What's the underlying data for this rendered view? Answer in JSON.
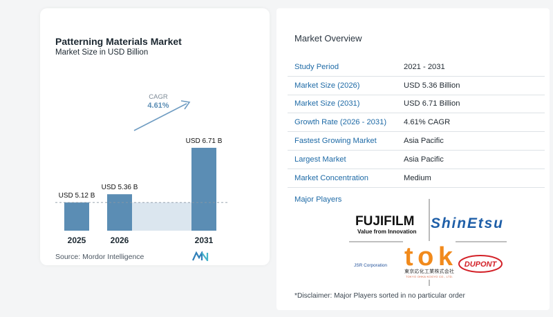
{
  "chart_data": {
    "type": "bar",
    "title": "Patterning Materials Market",
    "subtitle": "Market Size in USD Billion",
    "categories": [
      "2025",
      "2026",
      "2031"
    ],
    "values": [
      5.12,
      5.36,
      6.71
    ],
    "data_labels": [
      "USD 5.12 B",
      "USD 5.36 B",
      "USD 6.71 B"
    ],
    "cagr_label": "CAGR",
    "cagr_value": "4.61%",
    "color": "#5b8db4",
    "shade_color": "#dbe6ef"
  },
  "source": "Source:  Mordor Intelligence",
  "overview": {
    "title": "Market Overview",
    "rows": [
      {
        "label": "Study Period",
        "value": "2021 - 2031"
      },
      {
        "label": "Market Size (2026)",
        "value": "USD 5.36 Billion"
      },
      {
        "label": "Market Size (2031)",
        "value": "USD 6.71 Billion"
      },
      {
        "label": "Growth Rate (2026 - 2031)",
        "value": "4.61% CAGR"
      },
      {
        "label": "Fastest Growing Market",
        "value": "Asia Pacific"
      },
      {
        "label": "Largest Market",
        "value": "Asia Pacific"
      },
      {
        "label": "Market Concentration",
        "value": "Medium"
      }
    ]
  },
  "players": {
    "title": "Major Players",
    "fujifilm": "FUJIFILM",
    "fujifilm_tagline": "Value from Innovation",
    "shinetsu": "ShinEtsu",
    "jsr": "JSR Corporation",
    "tok": "tok",
    "tok_jp": "東京応化工業株式会社",
    "tok_en": "TOKYO OHKA KOGYO CO., LTD.",
    "dupont": "DUPONT"
  },
  "disclaimer": "*Disclaimer: Major Players sorted in no particular order"
}
